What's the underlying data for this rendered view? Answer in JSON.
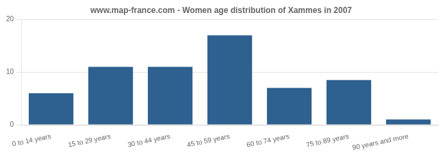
{
  "chart_data": {
    "type": "bar",
    "title": "www.map-france.com - Women age distribution of Xammes in 2007",
    "categories": [
      "0 to 14 years",
      "15 to 29 years",
      "30 to 44 years",
      "45 to 59 years",
      "60 to 74 years",
      "75 to 89 years",
      "90 years and more"
    ],
    "values": [
      6,
      11,
      11,
      17,
      7,
      8.5,
      1
    ],
    "color": "#2e6090",
    "ylim": [
      0,
      20
    ],
    "yticks": [
      0,
      10,
      20
    ],
    "grid": true
  }
}
